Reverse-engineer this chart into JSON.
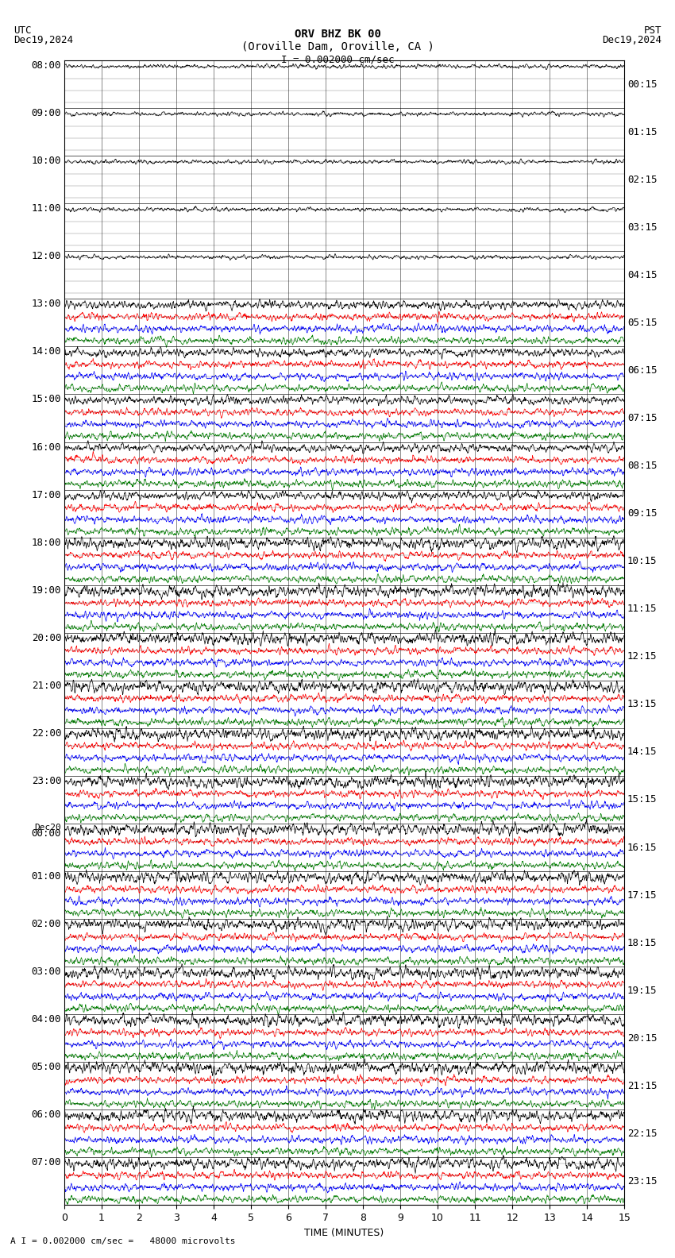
{
  "title_line1": "ORV BHZ BK 00",
  "title_line2": "(Oroville Dam, Oroville, CA )",
  "title_scale": "I = 0.002000 cm/sec",
  "utc_label": "UTC",
  "utc_date": "Dec19,2024",
  "pst_label": "PST",
  "pst_date": "Dec19,2024",
  "bottom_label": "A I = 0.002000 cm/sec =   48000 microvolts",
  "xlabel": "TIME (MINUTES)",
  "left_times": [
    "08:00",
    "09:00",
    "10:00",
    "11:00",
    "12:00",
    "13:00",
    "14:00",
    "15:00",
    "16:00",
    "17:00",
    "18:00",
    "19:00",
    "20:00",
    "21:00",
    "22:00",
    "23:00",
    "Dec20\n00:00",
    "01:00",
    "02:00",
    "03:00",
    "04:00",
    "05:00",
    "06:00",
    "07:00"
  ],
  "right_times": [
    "00:15",
    "01:15",
    "02:15",
    "03:15",
    "04:15",
    "05:15",
    "06:15",
    "07:15",
    "08:15",
    "09:15",
    "10:15",
    "11:15",
    "12:15",
    "13:15",
    "14:15",
    "15:15",
    "16:15",
    "17:15",
    "18:15",
    "19:15",
    "20:15",
    "21:15",
    "22:15",
    "23:15"
  ],
  "n_rows": 24,
  "traces_per_row": 4,
  "colors": [
    "black",
    "red",
    "blue",
    "green"
  ],
  "bg_color": "white",
  "grid_color": "black",
  "font_size": 9,
  "title_font_size": 10,
  "xmin": 0,
  "xmax": 15,
  "figwidth": 8.5,
  "figheight": 15.84,
  "dpi": 100
}
